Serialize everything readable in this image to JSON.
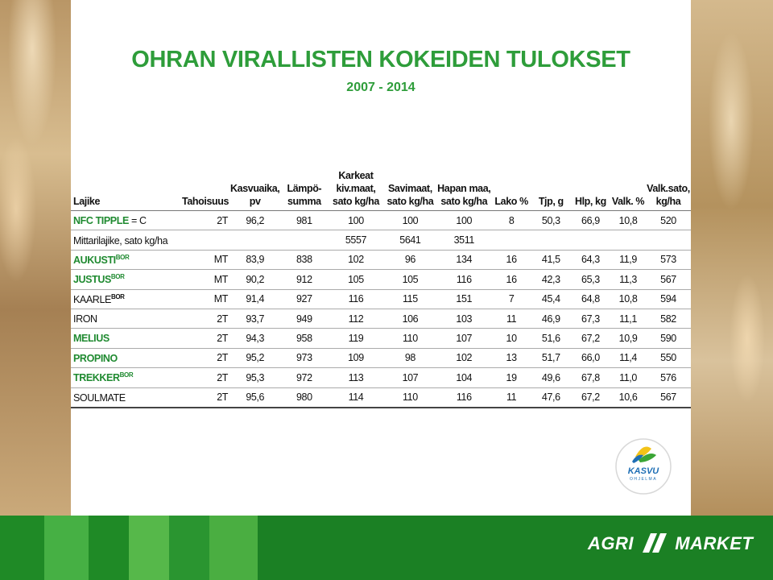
{
  "title": "OHRAN VIRALLISTEN KOKEIDEN TULOKSET",
  "subtitle": "2007 - 2014",
  "headers": {
    "lajike": "Lajike",
    "tahoisuus": "Tahoisuus",
    "kasvuaika": [
      "Kasvuaika,",
      "pv"
    ],
    "lampo": [
      "Lämpö-",
      "summa"
    ],
    "karkeat": [
      "Karkeat",
      "kiv.maat,",
      "sato kg/ha"
    ],
    "savimaat": [
      "Savimaat,",
      "sato kg/ha"
    ],
    "hapan": [
      "Hapan maa,",
      "sato kg/ha"
    ],
    "lako": "Lako %",
    "tjp": "Tjp, g",
    "hlp": "Hlp, kg",
    "valk": "Valk. %",
    "valksato": [
      "Valk.sato,",
      "kg/ha"
    ]
  },
  "rows": [
    {
      "name": "NFC TIPPLE",
      "suffix": " = C",
      "sup": "",
      "green": true,
      "taho": "2T",
      "kasvu": "96,2",
      "lampo": "981",
      "karkeat": "100",
      "savi": "100",
      "hapan": "100",
      "lako": "8",
      "tjp": "50,3",
      "hlp": "66,9",
      "valk": "10,8",
      "valksato": "520"
    },
    {
      "name": "Mittarilajike, sato kg/ha",
      "suffix": "",
      "sup": "",
      "green": false,
      "taho": "",
      "kasvu": "",
      "lampo": "",
      "karkeat": "5557",
      "savi": "5641",
      "hapan": "3511",
      "lako": "",
      "tjp": "",
      "hlp": "",
      "valk": "",
      "valksato": ""
    },
    {
      "name": "AUKUSTI",
      "suffix": "",
      "sup": "BOR",
      "green": true,
      "taho": "MT",
      "kasvu": "83,9",
      "lampo": "838",
      "karkeat": "102",
      "savi": "96",
      "hapan": "134",
      "lako": "16",
      "tjp": "41,5",
      "hlp": "64,3",
      "valk": "11,9",
      "valksato": "573"
    },
    {
      "name": "JUSTUS",
      "suffix": "",
      "sup": "BOR",
      "green": true,
      "taho": "MT",
      "kasvu": "90,2",
      "lampo": "912",
      "karkeat": "105",
      "savi": "105",
      "hapan": "116",
      "lako": "16",
      "tjp": "42,3",
      "hlp": "65,3",
      "valk": "11,3",
      "valksato": "567"
    },
    {
      "name": "KAARLE",
      "suffix": "",
      "sup": "BOR",
      "green": false,
      "taho": "MT",
      "kasvu": "91,4",
      "lampo": "927",
      "karkeat": "116",
      "savi": "115",
      "hapan": "151",
      "lako": "7",
      "tjp": "45,4",
      "hlp": "64,8",
      "valk": "10,8",
      "valksato": "594"
    },
    {
      "name": "IRON",
      "suffix": "",
      "sup": "",
      "green": false,
      "taho": "2T",
      "kasvu": "93,7",
      "lampo": "949",
      "karkeat": "112",
      "savi": "106",
      "hapan": "103",
      "lako": "11",
      "tjp": "46,9",
      "hlp": "67,3",
      "valk": "11,1",
      "valksato": "582"
    },
    {
      "name": "MELIUS",
      "suffix": "",
      "sup": "",
      "green": true,
      "taho": "2T",
      "kasvu": "94,3",
      "lampo": "958",
      "karkeat": "119",
      "savi": "110",
      "hapan": "107",
      "lako": "10",
      "tjp": "51,6",
      "hlp": "67,2",
      "valk": "10,9",
      "valksato": "590"
    },
    {
      "name": "PROPINO",
      "suffix": "",
      "sup": "",
      "green": true,
      "taho": "2T",
      "kasvu": "95,2",
      "lampo": "973",
      "karkeat": "109",
      "savi": "98",
      "hapan": "102",
      "lako": "13",
      "tjp": "51,7",
      "hlp": "66,0",
      "valk": "11,4",
      "valksato": "550"
    },
    {
      "name": "TREKKER",
      "suffix": "",
      "sup": "BOR",
      "green": true,
      "taho": "2T",
      "kasvu": "95,3",
      "lampo": "972",
      "karkeat": "113",
      "savi": "107",
      "hapan": "104",
      "lako": "19",
      "tjp": "49,6",
      "hlp": "67,8",
      "valk": "11,0",
      "valksato": "576"
    },
    {
      "name": "SOULMATE",
      "suffix": "",
      "sup": "",
      "green": false,
      "taho": "2T",
      "kasvu": "95,6",
      "lampo": "980",
      "karkeat": "114",
      "savi": "110",
      "hapan": "116",
      "lako": "11",
      "tjp": "47,6",
      "hlp": "67,2",
      "valk": "10,6",
      "valksato": "567"
    }
  ],
  "logos": {
    "kasvu_text": "KASVU",
    "kasvu_sub": "OHJELMA",
    "agri_left": "AGRI",
    "agri_right": "MARKET"
  },
  "colors": {
    "accent_green": "#2e9d3a",
    "name_green": "#1f8a30",
    "band_green": "#1b8024"
  }
}
